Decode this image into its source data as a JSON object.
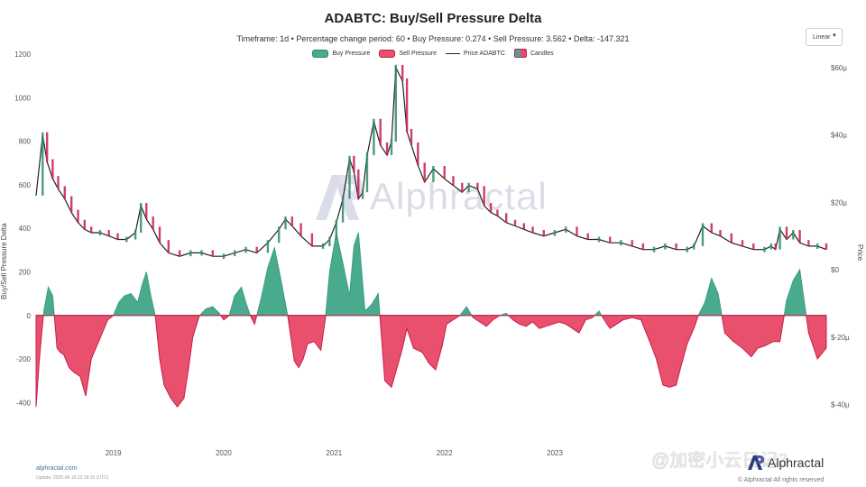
{
  "header": {
    "title": "ADABTC: Buy/Sell Pressure Delta",
    "subtitle": "Timeframe: 1d  •  Percentage change period: 60  •  Buy Pressure: 0.274  •  Sell Pressure: 3.562  •  Delta: -147.321"
  },
  "scale_select": {
    "value": "Linear"
  },
  "legend": {
    "buy": "Buy Pressure",
    "sell": "Sell Pressure",
    "price": "Price ADABTC",
    "candles": "Candles"
  },
  "watermark": {
    "text": "Alphractal"
  },
  "footer": {
    "site": "alphractal.com",
    "update": "Update: 2025-06-16 22:18:15 (UTC)",
    "copyright": "© Alphractal All rights reserved",
    "brand": "Alphractal",
    "wechat": "@加密小云日记3"
  },
  "colors": {
    "buy": "#3a9e82",
    "buy_fill": "#4aaa8e",
    "sell": "#c81e4a",
    "sell_fill": "#e8506e",
    "price": "#222222",
    "candle_up": "#2e8b6a",
    "candle_down": "#c81e4a"
  },
  "chart_data": {
    "type": "area",
    "title": "ADABTC: Buy/Sell Pressure Delta",
    "xlabel": "",
    "ylabel": "Buy/Sell Pressure Delta",
    "ylabel_right": "Price",
    "x_ticks": [
      "2019",
      "2020",
      "2021",
      "2022",
      "2023"
    ],
    "x_tick_times": [
      2019.0,
      2020.0,
      2021.0,
      2022.0,
      2023.0
    ],
    "xlim": [
      2018.3,
      2025.46
    ],
    "left_axis": {
      "ylim": [
        -440,
        1200
      ],
      "ticks": [
        -400,
        -200,
        0,
        200,
        400,
        600,
        800,
        1000,
        1200
      ]
    },
    "right_axis": {
      "ylim": [
        -4.2e-05,
        6.4e-05
      ],
      "ticks": [
        -4e-05,
        -2e-05,
        0,
        2e-05,
        4e-05,
        6e-05
      ],
      "tick_labels": [
        "$-40µ",
        "$-20µ",
        "$0",
        "$20µ",
        "$40µ",
        "$60µ"
      ]
    },
    "delta_series": {
      "name": "Buy/Sell Pressure Delta",
      "t": [
        2018.3,
        2018.33,
        2018.37,
        2018.41,
        2018.45,
        2018.49,
        2018.52,
        2018.55,
        2018.6,
        2018.64,
        2018.7,
        2018.75,
        2018.8,
        2018.85,
        2018.9,
        2018.95,
        2019.0,
        2019.05,
        2019.1,
        2019.16,
        2019.22,
        2019.26,
        2019.3,
        2019.34,
        2019.38,
        2019.42,
        2019.46,
        2019.52,
        2019.58,
        2019.64,
        2019.68,
        2019.72,
        2019.78,
        2019.84,
        2019.9,
        2019.96,
        2020.0,
        2020.05,
        2020.1,
        2020.16,
        2020.2,
        2020.24,
        2020.28,
        2020.34,
        2020.4,
        2020.46,
        2020.52,
        2020.58,
        2020.64,
        2020.68,
        2020.72,
        2020.76,
        2020.82,
        2020.88,
        2020.92,
        2020.96,
        2021.02,
        2021.08,
        2021.14,
        2021.18,
        2021.22,
        2021.28,
        2021.34,
        2021.4,
        2021.46,
        2021.52,
        2021.56,
        2021.62,
        2021.66,
        2021.72,
        2021.8,
        2021.86,
        2021.92,
        2021.98,
        2022.02,
        2022.08,
        2022.14,
        2022.2,
        2022.26,
        2022.32,
        2022.38,
        2022.44,
        2022.5,
        2022.56,
        2022.62,
        2022.68,
        2022.74,
        2022.8,
        2022.86,
        2022.92,
        2022.98,
        2023.04,
        2023.1,
        2023.16,
        2023.22,
        2023.28,
        2023.34,
        2023.4,
        2023.46,
        2023.5,
        2023.56,
        2023.62,
        2023.7,
        2023.78,
        2023.86,
        2023.92,
        2023.98,
        2024.04,
        2024.1,
        2024.14,
        2024.2,
        2024.26,
        2024.3,
        2024.36,
        2024.42,
        2024.48,
        2024.54,
        2024.62,
        2024.7,
        2024.78,
        2024.84,
        2024.9,
        2024.98,
        2025.04,
        2025.1,
        2025.16,
        2025.22,
        2025.3,
        2025.38,
        2025.46
      ],
      "v": [
        -420,
        -200,
        20,
        130,
        90,
        -150,
        -170,
        -180,
        -240,
        -260,
        -280,
        -370,
        -200,
        -140,
        -80,
        -20,
        0,
        60,
        90,
        100,
        60,
        140,
        200,
        90,
        0,
        -200,
        -320,
        -380,
        -420,
        -380,
        -250,
        -100,
        0,
        30,
        40,
        10,
        -20,
        0,
        90,
        130,
        60,
        0,
        -40,
        80,
        220,
        310,
        160,
        0,
        -210,
        -240,
        -200,
        -130,
        -120,
        -160,
        -20,
        200,
        380,
        240,
        90,
        320,
        380,
        20,
        50,
        100,
        -300,
        -330,
        -260,
        -150,
        -60,
        -150,
        -170,
        -220,
        -250,
        -140,
        -40,
        -20,
        0,
        40,
        -10,
        -30,
        -50,
        -20,
        0,
        10,
        -20,
        -40,
        -50,
        -30,
        -60,
        -50,
        -40,
        -30,
        -40,
        -60,
        -80,
        -20,
        -10,
        20,
        -30,
        -60,
        -40,
        -20,
        -10,
        -20,
        -120,
        -200,
        -320,
        -330,
        -320,
        -240,
        -130,
        -60,
        0,
        60,
        170,
        100,
        -80,
        -120,
        -150,
        -190,
        -150,
        -140,
        -120,
        -120,
        70,
        160,
        210,
        -80,
        -200,
        -150
      ]
    },
    "price_series": {
      "name": "Price ADABTC",
      "t": [
        2018.3,
        2018.36,
        2018.4,
        2018.45,
        2018.5,
        2018.56,
        2018.62,
        2018.68,
        2018.74,
        2018.8,
        2018.88,
        2018.96,
        2019.04,
        2019.12,
        2019.2,
        2019.25,
        2019.3,
        2019.36,
        2019.42,
        2019.5,
        2019.6,
        2019.7,
        2019.8,
        2019.9,
        2020.0,
        2020.1,
        2020.2,
        2020.3,
        2020.4,
        2020.5,
        2020.56,
        2020.62,
        2020.7,
        2020.8,
        2020.9,
        2020.96,
        2021.02,
        2021.08,
        2021.14,
        2021.18,
        2021.22,
        2021.26,
        2021.3,
        2021.36,
        2021.42,
        2021.48,
        2021.52,
        2021.56,
        2021.62,
        2021.66,
        2021.7,
        2021.76,
        2021.82,
        2021.9,
        2022.0,
        2022.08,
        2022.16,
        2022.22,
        2022.3,
        2022.36,
        2022.42,
        2022.48,
        2022.56,
        2022.64,
        2022.72,
        2022.8,
        2022.9,
        2023.0,
        2023.1,
        2023.2,
        2023.3,
        2023.4,
        2023.5,
        2023.6,
        2023.7,
        2023.8,
        2023.9,
        2024.0,
        2024.1,
        2024.2,
        2024.26,
        2024.34,
        2024.42,
        2024.5,
        2024.6,
        2024.7,
        2024.8,
        2024.9,
        2024.96,
        2025.0,
        2025.04,
        2025.1,
        2025.16,
        2025.22,
        2025.3,
        2025.38,
        2025.46
      ],
      "v": [
        2.2e-05,
        4e-05,
        3.2e-05,
        2.7e-05,
        2.4e-05,
        2.1e-05,
        1.7e-05,
        1.4e-05,
        1.2e-05,
        1.1e-05,
        1.1e-05,
        1e-05,
        9e-06,
        9e-06,
        1.1e-05,
        1.9e-05,
        1.5e-05,
        1.2e-05,
        8e-06,
        5e-06,
        4e-06,
        5e-06,
        5e-06,
        4e-06,
        4e-06,
        5e-06,
        6e-06,
        5e-06,
        8e-06,
        1.2e-05,
        1.5e-05,
        1.3e-05,
        1e-05,
        7e-06,
        7e-06,
        9e-06,
        1.4e-05,
        2.1e-05,
        3.3e-05,
        2.9e-05,
        2.1e-05,
        2.3e-05,
        3.4e-05,
        4.4e-05,
        3.7e-05,
        3.4e-05,
        3.8e-05,
        6e-05,
        5.6e-05,
        4.1e-05,
        3.7e-05,
        3.1e-05,
        2.6e-05,
        3e-05,
        2.7e-05,
        2.5e-05,
        2.3e-05,
        2.5e-05,
        2.4e-05,
        1.9e-05,
        1.7e-05,
        1.6e-05,
        1.4e-05,
        1.3e-05,
        1.2e-05,
        1.1e-05,
        1e-05,
        1.1e-05,
        1.2e-05,
        1e-05,
        9e-06,
        9e-06,
        8e-06,
        8e-06,
        7e-06,
        6e-06,
        6e-06,
        7e-06,
        6e-06,
        6e-06,
        7e-06,
        1.3e-05,
        1.1e-05,
        1e-05,
        8e-06,
        7e-06,
        6e-06,
        6e-06,
        7e-06,
        6e-06,
        1.2e-05,
        9e-06,
        1.1e-05,
        8e-06,
        7e-06,
        7e-06,
        6e-06
      ]
    },
    "legend_position": "top-center",
    "grid": false
  }
}
